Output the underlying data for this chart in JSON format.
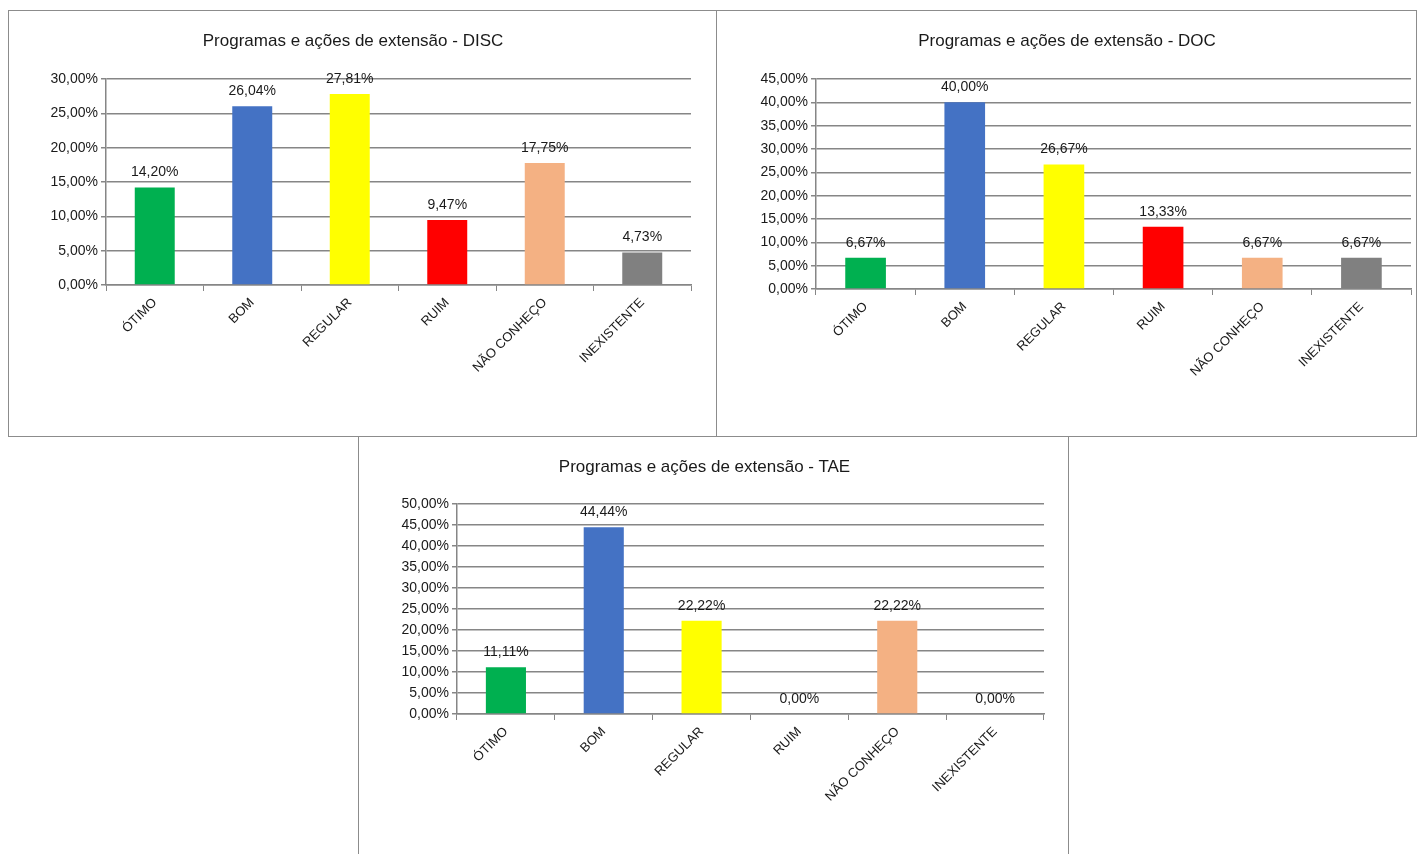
{
  "chart_data": [
    {
      "type": "bar",
      "title": "Programas e ações de extensão - DISC",
      "categories": [
        "ÓTIMO",
        "BOM",
        "REGULAR",
        "RUIM",
        "NÃO CONHEÇO",
        "INEXISTENTE"
      ],
      "values": [
        14.2,
        26.04,
        27.81,
        9.47,
        17.75,
        4.73
      ],
      "value_labels": [
        "14,20%",
        "26,04%",
        "27,81%",
        "9,47%",
        "17,75%",
        "4,73%"
      ],
      "colors": [
        "#00b050",
        "#4472c4",
        "#ffff00",
        "#ff0000",
        "#f4b183",
        "#808080"
      ],
      "ylim": [
        0,
        30
      ],
      "yticks": [
        {
          "value": 0,
          "label": "0,00%"
        },
        {
          "value": 5,
          "label": "5,00%"
        },
        {
          "value": 10,
          "label": "10,00%"
        },
        {
          "value": 15,
          "label": "15,00%"
        },
        {
          "value": 20,
          "label": "20,00%"
        },
        {
          "value": 25,
          "label": "25,00%"
        },
        {
          "value": 30,
          "label": "30,00%"
        }
      ],
      "grid": "y"
    },
    {
      "type": "bar",
      "title": "Programas e ações de extensão - DOC",
      "categories": [
        "ÓTIMO",
        "BOM",
        "REGULAR",
        "RUIM",
        "NÃO CONHEÇO",
        "INEXISTENTE"
      ],
      "values": [
        6.67,
        40,
        26.67,
        13.33,
        6.67,
        6.67
      ],
      "value_labels": [
        "6,67%",
        "40,00%",
        "26,67%",
        "13,33%",
        "6,67%",
        "6,67%"
      ],
      "colors": [
        "#00b050",
        "#4472c4",
        "#ffff00",
        "#ff0000",
        "#f4b183",
        "#808080"
      ],
      "ylim": [
        0,
        45
      ],
      "yticks": [
        {
          "value": 0,
          "label": "0,00%"
        },
        {
          "value": 5,
          "label": "5,00%"
        },
        {
          "value": 10,
          "label": "10,00%"
        },
        {
          "value": 15,
          "label": "15,00%"
        },
        {
          "value": 20,
          "label": "20,00%"
        },
        {
          "value": 25,
          "label": "25,00%"
        },
        {
          "value": 30,
          "label": "30,00%"
        },
        {
          "value": 35,
          "label": "35,00%"
        },
        {
          "value": 40,
          "label": "40,00%"
        },
        {
          "value": 45,
          "label": "45,00%"
        }
      ],
      "grid": "y"
    },
    {
      "type": "bar",
      "title": "Programas e ações de extensão - TAE",
      "categories": [
        "ÓTIMO",
        "BOM",
        "REGULAR",
        "RUIM",
        "NÃO CONHEÇO",
        "INEXISTENTE"
      ],
      "values": [
        11.11,
        44.44,
        22.22,
        0,
        22.22,
        0
      ],
      "value_labels": [
        "11,11%",
        "44,44%",
        "22,22%",
        "0,00%",
        "22,22%",
        "0,00%"
      ],
      "colors": [
        "#00b050",
        "#4472c4",
        "#ffff00",
        "#ff0000",
        "#f4b183",
        "#808080"
      ],
      "ylim": [
        0,
        50
      ],
      "yticks": [
        {
          "value": 0,
          "label": "0,00%"
        },
        {
          "value": 5,
          "label": "5,00%"
        },
        {
          "value": 10,
          "label": "10,00%"
        },
        {
          "value": 15,
          "label": "15,00%"
        },
        {
          "value": 20,
          "label": "20,00%"
        },
        {
          "value": 25,
          "label": "25,00%"
        },
        {
          "value": 30,
          "label": "30,00%"
        },
        {
          "value": 35,
          "label": "35,00%"
        },
        {
          "value": 40,
          "label": "40,00%"
        },
        {
          "value": 45,
          "label": "45,00%"
        },
        {
          "value": 50,
          "label": "50,00%"
        }
      ],
      "grid": "y"
    }
  ]
}
